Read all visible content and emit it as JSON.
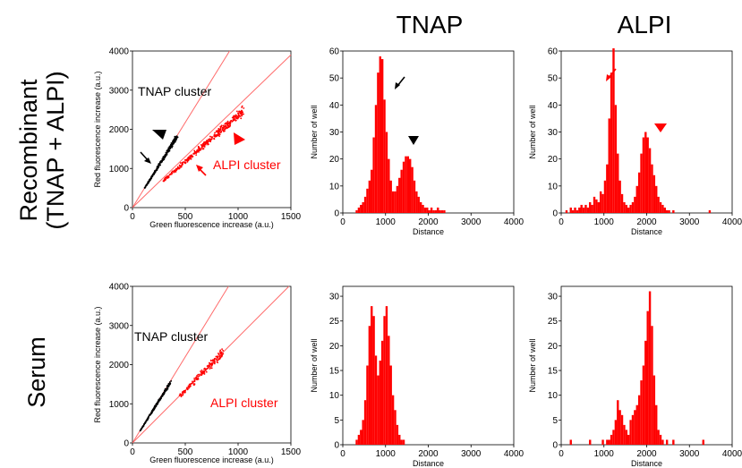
{
  "column_titles": [
    "TNAP",
    "ALPI"
  ],
  "row_titles": {
    "recombinant": [
      "Recombinant",
      "(TNAP + ALPI)"
    ],
    "serum": [
      "Serum"
    ]
  },
  "colors": {
    "black_points": "#000000",
    "red_points": "#ff0000",
    "fit_line": "#ff6b6b",
    "bars": "#ff0000"
  },
  "chart_data": [
    {
      "id": "scatter-recombinant",
      "type": "scatter",
      "xlabel": "Green fluorescence increase (a.u.)",
      "ylabel": "Red fluorescence increase (a.u.)",
      "xlim": [
        0,
        1500
      ],
      "ylim": [
        0,
        4000
      ],
      "xticks": [
        0,
        500,
        1000,
        1500
      ],
      "yticks": [
        0,
        1000,
        2000,
        3000,
        4000
      ],
      "fit_lines": [
        {
          "slope": 4.35
        },
        {
          "slope": 2.6
        }
      ],
      "annotations": [
        {
          "text": "TNAP cluster",
          "color": "#000000"
        },
        {
          "text": "ALPI cluster",
          "color": "#ff0000"
        }
      ],
      "clusters": [
        {
          "color": "#000000",
          "x_range": [
            120,
            420
          ],
          "slope": 4.3,
          "spread": 0.06,
          "n": 320
        },
        {
          "color": "#ff0000",
          "x_range": [
            300,
            1050
          ],
          "slope": 2.35,
          "spread": 0.07,
          "n": 420
        }
      ]
    },
    {
      "id": "scatter-serum",
      "type": "scatter",
      "xlabel": "Green fluorescence increase (a.u.)",
      "ylabel": "Red fluorescence increase (a.u.)",
      "xlim": [
        0,
        1500
      ],
      "ylim": [
        0,
        4000
      ],
      "xticks": [
        0,
        500,
        1000,
        1500
      ],
      "yticks": [
        0,
        1000,
        2000,
        3000,
        4000
      ],
      "fit_lines": [
        {
          "slope": 4.4
        },
        {
          "slope": 2.7
        }
      ],
      "annotations": [
        {
          "text": "TNAP cluster",
          "color": "#000000"
        },
        {
          "text": "ALPI cluster",
          "color": "#ff0000"
        }
      ],
      "clusters": [
        {
          "color": "#000000",
          "x_range": [
            70,
            360
          ],
          "slope": 4.3,
          "spread": 0.05,
          "n": 230
        },
        {
          "color": "#ff0000",
          "x_range": [
            450,
            860
          ],
          "slope": 2.7,
          "spread": 0.08,
          "n": 170
        }
      ]
    },
    {
      "id": "hist-recombinant-tnap",
      "type": "bar",
      "xlabel": "Distance",
      "ylabel": "Number of well",
      "xlim": [
        0,
        4000
      ],
      "ylim": [
        0,
        60
      ],
      "xticks": [
        0,
        1000,
        2000,
        3000,
        4000
      ],
      "yticks": [
        0,
        10,
        20,
        30,
        40,
        50,
        60
      ],
      "bin_start": 300,
      "bin_width": 50,
      "values": [
        1,
        2,
        3,
        4,
        6,
        9,
        12,
        16,
        28,
        40,
        52,
        58,
        57,
        42,
        30,
        20,
        12,
        8,
        8,
        10,
        13,
        16,
        19,
        21,
        21,
        20,
        17,
        12,
        8,
        6,
        4,
        3,
        2,
        2,
        1,
        2,
        1,
        1,
        2,
        1,
        1,
        1
      ]
    },
    {
      "id": "hist-recombinant-alpi",
      "type": "bar",
      "xlabel": "Distance",
      "ylabel": "Number of well",
      "xlim": [
        0,
        4000
      ],
      "ylim": [
        0,
        60
      ],
      "xticks": [
        0,
        1000,
        2000,
        3000,
        4000
      ],
      "yticks": [
        0,
        10,
        20,
        30,
        40,
        50,
        60
      ],
      "bin_start": 100,
      "bin_width": 50,
      "values": [
        1,
        0,
        2,
        1,
        2,
        1,
        2,
        3,
        2,
        3,
        2,
        4,
        3,
        6,
        5,
        4,
        8,
        7,
        12,
        18,
        35,
        52,
        61,
        40,
        22,
        12,
        7,
        4,
        3,
        2,
        3,
        4,
        6,
        10,
        15,
        22,
        28,
        30,
        28,
        24,
        18,
        14,
        10,
        6,
        4,
        3,
        2,
        1,
        1,
        0,
        1,
        0,
        0,
        0,
        0,
        0,
        0,
        0,
        0,
        0,
        0,
        0,
        0,
        0,
        0,
        0,
        0,
        1
      ]
    },
    {
      "id": "hist-serum-tnap",
      "type": "bar",
      "xlabel": "Distance",
      "ylabel": "Number of well",
      "xlim": [
        0,
        4000
      ],
      "ylim": [
        0,
        32
      ],
      "xticks": [
        0,
        1000,
        2000,
        3000,
        4000
      ],
      "yticks": [
        0,
        5,
        10,
        15,
        20,
        25,
        30
      ],
      "bin_start": 300,
      "bin_width": 50,
      "values": [
        1,
        2,
        3,
        5,
        9,
        16,
        24,
        28,
        26,
        18,
        14,
        17,
        21,
        26,
        28,
        22,
        16,
        10,
        7,
        4,
        2,
        1,
        1
      ]
    },
    {
      "id": "hist-serum-alpi",
      "type": "bar",
      "xlabel": "Distance",
      "ylabel": "Number of well",
      "xlim": [
        0,
        4000
      ],
      "ylim": [
        0,
        32
      ],
      "xticks": [
        0,
        1000,
        2000,
        3000,
        4000
      ],
      "yticks": [
        0,
        5,
        10,
        15,
        20,
        25,
        30
      ],
      "bin_start": 200,
      "bin_width": 50,
      "values": [
        1,
        0,
        0,
        0,
        0,
        0,
        0,
        0,
        0,
        1,
        0,
        0,
        0,
        0,
        0,
        1,
        0,
        1,
        1,
        2,
        3,
        5,
        9,
        7,
        6,
        4,
        3,
        2,
        5,
        6,
        7,
        8,
        10,
        13,
        16,
        21,
        27,
        31,
        24,
        14,
        8,
        3,
        2,
        1,
        0,
        1,
        0,
        0,
        1,
        0,
        0,
        0,
        0,
        0,
        0,
        0,
        0,
        0,
        0,
        0,
        0,
        0,
        1
      ]
    }
  ]
}
